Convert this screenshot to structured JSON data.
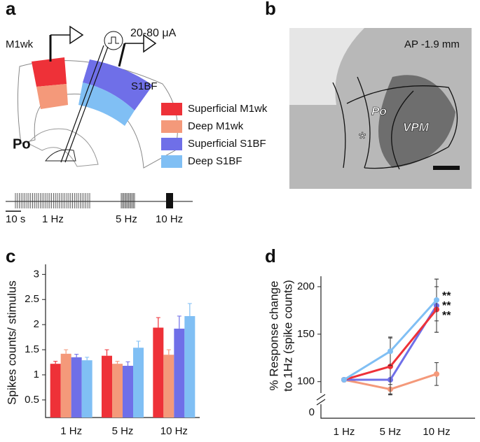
{
  "panel_a": {
    "label": "a",
    "recording_1": "M1wk",
    "stimulus": "20-80 μA",
    "recording_2": "S1BF",
    "region": "Po",
    "scale": "10 s",
    "timeline": [
      "1 Hz",
      "5 Hz",
      "10 Hz"
    ]
  },
  "panel_b": {
    "label": "b",
    "section": "AP -1.9 mm",
    "region_1": "Po",
    "region_2": "VPM",
    "marker": "*"
  },
  "chart_data": [
    {
      "type": "bar",
      "label": "c",
      "ylabel": "Spikes counts/ stimulus",
      "categories": [
        "1 Hz",
        "5 Hz",
        "10 Hz"
      ],
      "series": [
        {
          "name": "Superficial M1wk",
          "color": "#ee3138",
          "values": [
            1.22,
            1.38,
            1.94
          ],
          "errors": [
            0.05,
            0.12,
            0.2
          ]
        },
        {
          "name": "Deep M1wk",
          "color": "#f4997a",
          "values": [
            1.42,
            1.22,
            1.4
          ],
          "errors": [
            0.08,
            0.05,
            0.1
          ]
        },
        {
          "name": "Superficial S1BF",
          "color": "#6f6fe8",
          "values": [
            1.35,
            1.18,
            1.92
          ],
          "errors": [
            0.06,
            0.08,
            0.25
          ]
        },
        {
          "name": "Deep S1BF",
          "color": "#80bff4",
          "values": [
            1.29,
            1.54,
            2.17
          ],
          "errors": [
            0.06,
            0.13,
            0.25
          ]
        }
      ],
      "ylim": [
        0.15,
        3.2
      ],
      "yticks": [
        0.5,
        1,
        1.5,
        2,
        2.5,
        3
      ]
    },
    {
      "type": "line",
      "label": "d",
      "ylabel": [
        "% Response change",
        "to 1Hz (spike counts)"
      ],
      "categories": [
        "1 Hz",
        "5 Hz",
        "10 Hz"
      ],
      "series": [
        {
          "color": "#f4997a",
          "values": [
            102,
            92,
            108
          ],
          "errors": [
            0,
            5,
            12
          ]
        },
        {
          "color": "#6f6fe8",
          "values": [
            102,
            102,
            180
          ],
          "errors": [
            0,
            15,
            28
          ]
        },
        {
          "color": "#ee3138",
          "values": [
            102,
            116,
            176
          ],
          "errors": [
            0,
            30,
            24
          ]
        },
        {
          "color": "#80bff4",
          "values": [
            102,
            132,
            186
          ],
          "errors": [
            0,
            15,
            22
          ]
        }
      ],
      "significance": [
        "**",
        "**",
        "**"
      ],
      "ylim": [
        88,
        211
      ],
      "yticks": [
        100,
        150,
        200
      ],
      "ybreak_tick": 0
    }
  ]
}
